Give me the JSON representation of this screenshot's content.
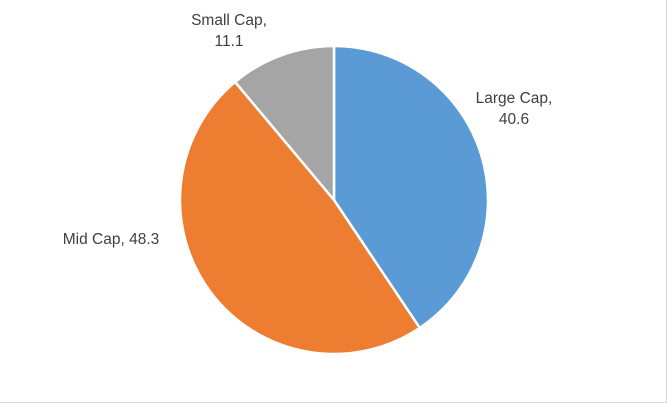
{
  "chart_data": {
    "type": "pie",
    "categories": [
      "Large Cap",
      "Mid Cap",
      "Small Cap"
    ],
    "values": [
      40.6,
      48.3,
      11.1
    ],
    "colors": [
      "#5b9bd5",
      "#ed7d31",
      "#a5a5a5"
    ],
    "data_labels": [
      [
        "Large Cap,",
        "40.6"
      ],
      [
        "Mid Cap, 48.3"
      ],
      [
        "Small Cap,",
        "11.1"
      ]
    ],
    "start_angle_deg": 0,
    "direction": "clockwise",
    "legend": "none"
  }
}
